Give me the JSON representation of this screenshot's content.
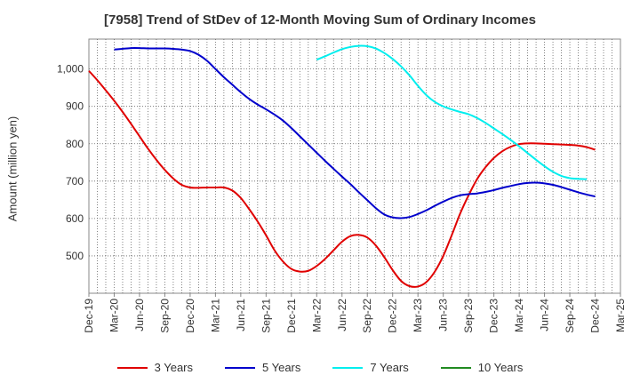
{
  "chart_data": {
    "type": "line",
    "title": "[7958]  Trend of StDev of 12-Month Moving Sum of Ordinary Incomes",
    "ylabel": "Amount (million yen)",
    "xlabel": "",
    "ylim": [
      400,
      1080
    ],
    "yticks": [
      500,
      600,
      700,
      800,
      900,
      1000
    ],
    "ytick_labels": [
      "500",
      "600",
      "700",
      "800",
      "900",
      "1,000"
    ],
    "x_ticks": [
      "Dec-19",
      "Mar-20",
      "Jun-20",
      "Sep-20",
      "Dec-20",
      "Mar-21",
      "Jun-21",
      "Sep-21",
      "Dec-21",
      "Mar-22",
      "Jun-22",
      "Sep-22",
      "Dec-22",
      "Mar-23",
      "Jun-23",
      "Sep-23",
      "Dec-23",
      "Mar-24",
      "Jun-24",
      "Sep-24",
      "Dec-24",
      "Mar-25"
    ],
    "grid": true,
    "legend_position": "bottom",
    "series": [
      {
        "name": "3 Years",
        "color": "#e00000",
        "points": [
          [
            "Dec-19",
            995
          ],
          [
            "Jan-20",
            970
          ],
          [
            "Feb-20",
            943
          ],
          [
            "Mar-20",
            915
          ],
          [
            "Apr-20",
            885
          ],
          [
            "May-20",
            853
          ],
          [
            "Jun-20",
            820
          ],
          [
            "Jul-20",
            787
          ],
          [
            "Aug-20",
            757
          ],
          [
            "Sep-20",
            730
          ],
          [
            "Oct-20",
            707
          ],
          [
            "Nov-20",
            690
          ],
          [
            "Dec-20",
            683
          ],
          [
            "Jan-21",
            682
          ],
          [
            "Feb-21",
            683
          ],
          [
            "Mar-21",
            683
          ],
          [
            "Apr-21",
            683
          ],
          [
            "May-21",
            675
          ],
          [
            "Jun-21",
            655
          ],
          [
            "Jul-21",
            625
          ],
          [
            "Aug-21",
            592
          ],
          [
            "Sep-21",
            555
          ],
          [
            "Oct-21",
            515
          ],
          [
            "Nov-21",
            485
          ],
          [
            "Dec-21",
            465
          ],
          [
            "Jan-22",
            458
          ],
          [
            "Feb-22",
            460
          ],
          [
            "Mar-22",
            473
          ],
          [
            "Apr-22",
            492
          ],
          [
            "May-22",
            515
          ],
          [
            "Jun-22",
            538
          ],
          [
            "Jul-22",
            553
          ],
          [
            "Aug-22",
            556
          ],
          [
            "Sep-22",
            549
          ],
          [
            "Oct-22",
            528
          ],
          [
            "Nov-22",
            497
          ],
          [
            "Dec-22",
            462
          ],
          [
            "Jan-23",
            433
          ],
          [
            "Feb-23",
            419
          ],
          [
            "Mar-23",
            418
          ],
          [
            "Apr-23",
            430
          ],
          [
            "May-23",
            458
          ],
          [
            "Jun-23",
            500
          ],
          [
            "Jul-23",
            555
          ],
          [
            "Aug-23",
            613
          ],
          [
            "Sep-23",
            662
          ],
          [
            "Oct-23",
            705
          ],
          [
            "Nov-23",
            737
          ],
          [
            "Dec-23",
            762
          ],
          [
            "Jan-24",
            780
          ],
          [
            "Feb-24",
            792
          ],
          [
            "Mar-24",
            799
          ],
          [
            "Apr-24",
            801
          ],
          [
            "May-24",
            801
          ],
          [
            "Jun-24",
            800
          ],
          [
            "Jul-24",
            799
          ],
          [
            "Aug-24",
            798
          ],
          [
            "Sep-24",
            797
          ],
          [
            "Oct-24",
            795
          ],
          [
            "Nov-24",
            791
          ],
          [
            "Dec-24",
            784
          ]
        ]
      },
      {
        "name": "5 Years",
        "color": "#0000cc",
        "points": [
          [
            "Mar-20",
            1052
          ],
          [
            "Apr-20",
            1054
          ],
          [
            "May-20",
            1056
          ],
          [
            "Jun-20",
            1056
          ],
          [
            "Jul-20",
            1055
          ],
          [
            "Aug-20",
            1055
          ],
          [
            "Sep-20",
            1055
          ],
          [
            "Oct-20",
            1054
          ],
          [
            "Nov-20",
            1052
          ],
          [
            "Dec-20",
            1048
          ],
          [
            "Jan-21",
            1038
          ],
          [
            "Feb-21",
            1022
          ],
          [
            "Mar-21",
            1000
          ],
          [
            "Apr-21",
            978
          ],
          [
            "May-21",
            958
          ],
          [
            "Jun-21",
            938
          ],
          [
            "Jul-21",
            920
          ],
          [
            "Aug-21",
            905
          ],
          [
            "Sep-21",
            892
          ],
          [
            "Oct-21",
            878
          ],
          [
            "Nov-21",
            862
          ],
          [
            "Dec-21",
            842
          ],
          [
            "Jan-22",
            820
          ],
          [
            "Feb-22",
            798
          ],
          [
            "Mar-22",
            776
          ],
          [
            "Apr-22",
            754
          ],
          [
            "May-22",
            733
          ],
          [
            "Jun-22",
            712
          ],
          [
            "Jul-22",
            692
          ],
          [
            "Aug-22",
            670
          ],
          [
            "Sep-22",
            649
          ],
          [
            "Oct-22",
            628
          ],
          [
            "Nov-22",
            611
          ],
          [
            "Dec-22",
            603
          ],
          [
            "Jan-23",
            601
          ],
          [
            "Feb-23",
            604
          ],
          [
            "Mar-23",
            612
          ],
          [
            "Apr-23",
            622
          ],
          [
            "May-23",
            634
          ],
          [
            "Jun-23",
            645
          ],
          [
            "Jul-23",
            655
          ],
          [
            "Aug-23",
            662
          ],
          [
            "Sep-23",
            665
          ],
          [
            "Oct-23",
            667
          ],
          [
            "Nov-23",
            671
          ],
          [
            "Dec-23",
            676
          ],
          [
            "Jan-24",
            682
          ],
          [
            "Feb-24",
            687
          ],
          [
            "Mar-24",
            692
          ],
          [
            "Apr-24",
            695
          ],
          [
            "May-24",
            696
          ],
          [
            "Jun-24",
            694
          ],
          [
            "Jul-24",
            690
          ],
          [
            "Aug-24",
            684
          ],
          [
            "Sep-24",
            677
          ],
          [
            "Oct-24",
            670
          ],
          [
            "Nov-24",
            664
          ],
          [
            "Dec-24",
            659
          ]
        ]
      },
      {
        "name": "7 Years",
        "color": "#00eeee",
        "points": [
          [
            "Mar-22",
            1025
          ],
          [
            "Apr-22",
            1034
          ],
          [
            "May-22",
            1044
          ],
          [
            "Jun-22",
            1053
          ],
          [
            "Jul-22",
            1059
          ],
          [
            "Aug-22",
            1062
          ],
          [
            "Sep-22",
            1061
          ],
          [
            "Oct-22",
            1055
          ],
          [
            "Nov-22",
            1043
          ],
          [
            "Dec-22",
            1027
          ],
          [
            "Jan-23",
            1007
          ],
          [
            "Feb-23",
            983
          ],
          [
            "Mar-23",
            955
          ],
          [
            "Apr-23",
            930
          ],
          [
            "May-23",
            912
          ],
          [
            "Jun-23",
            900
          ],
          [
            "Jul-23",
            892
          ],
          [
            "Aug-23",
            885
          ],
          [
            "Sep-23",
            879
          ],
          [
            "Oct-23",
            869
          ],
          [
            "Nov-23",
            856
          ],
          [
            "Dec-23",
            841
          ],
          [
            "Jan-24",
            826
          ],
          [
            "Feb-24",
            810
          ],
          [
            "Mar-24",
            793
          ],
          [
            "Apr-24",
            775
          ],
          [
            "May-24",
            757
          ],
          [
            "Jun-24",
            740
          ],
          [
            "Jul-24",
            725
          ],
          [
            "Aug-24",
            714
          ],
          [
            "Sep-24",
            708
          ],
          [
            "Oct-24",
            706
          ],
          [
            "Nov-24",
            705
          ]
        ]
      },
      {
        "name": "10 Years",
        "color": "#228b22",
        "points": []
      }
    ]
  }
}
